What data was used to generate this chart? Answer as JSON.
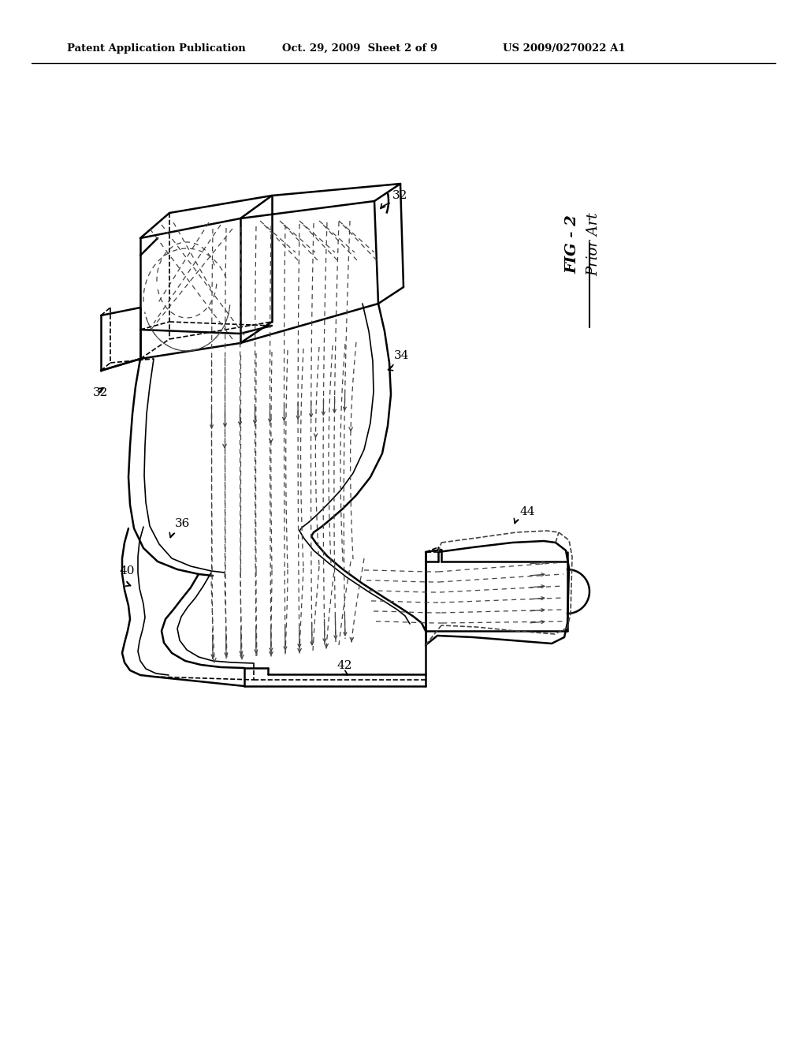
{
  "background_color": "#ffffff",
  "header_text": "Patent Application Publication",
  "header_date": "Oct. 29, 2009  Sheet 2 of 9",
  "header_patent": "US 2009/0270022 A1",
  "fig_label": "FIG - 2",
  "fig_sublabel": "Prior Art",
  "labels": {
    "32_top": "32",
    "32_left": "32",
    "34": "34",
    "36": "36",
    "40": "40",
    "42": "42",
    "44": "44"
  },
  "line_color": "#000000",
  "dashed_color": "#444444",
  "text_color": "#000000",
  "lw_main": 1.8,
  "lw_inner": 1.2,
  "lw_dash": 0.9
}
